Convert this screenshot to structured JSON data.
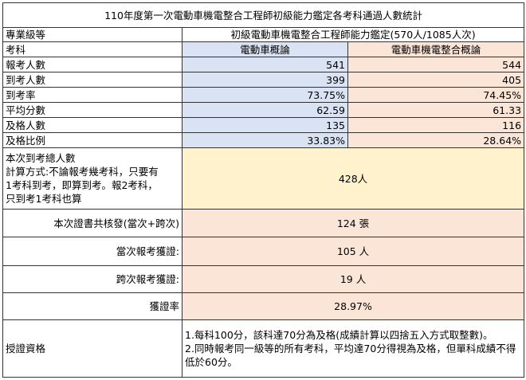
{
  "title": "110年度第一次電動車機電整合工程師初級能力鑑定各考科通過人數統計",
  "header": {
    "level_label": "專業級等",
    "level_value": "初級電動車機電整合工程師能力鑑定(570人/1085人次)",
    "subject_label": "考科",
    "subjects": [
      "電動車概論",
      "電動車機電整合概論"
    ]
  },
  "stats": [
    {
      "label": "報考人數",
      "values": [
        "541",
        "544"
      ]
    },
    {
      "label": "到考人數",
      "values": [
        "399",
        "405"
      ]
    },
    {
      "label": "到考率",
      "values": [
        "73.75%",
        "74.45%"
      ]
    },
    {
      "label": "平均分數",
      "values": [
        "62.59",
        "61.33"
      ]
    },
    {
      "label": "及格人數",
      "values": [
        "135",
        "116"
      ]
    },
    {
      "label": "及格比例",
      "values": [
        "33.83%",
        "28.64%"
      ]
    }
  ],
  "summary": [
    {
      "label_lines": [
        "本次到考總人數",
        "計算方式:不論報考幾考科，只要有",
        "1考科到考，即算到考。報2考科，",
        "只到考1考科也算"
      ],
      "value": "428人"
    },
    {
      "label": "本次證書共核發(當次+跨次)",
      "value": "124 張"
    },
    {
      "label": "當次報考獲證:",
      "value": "105 人"
    },
    {
      "label": "跨次報考獲證:",
      "value": "19 人"
    },
    {
      "label": "獲證率",
      "value": "28.97%"
    }
  ],
  "qualification": {
    "label": "授證資格",
    "notes": [
      "1.每科100分，該科達70分為及格(成績計算以四捨五入方式取整數)。",
      "2.同時報考同一級等的所有考科，平均達70分得視為及格，但單科成績不得低於60分。"
    ]
  }
}
